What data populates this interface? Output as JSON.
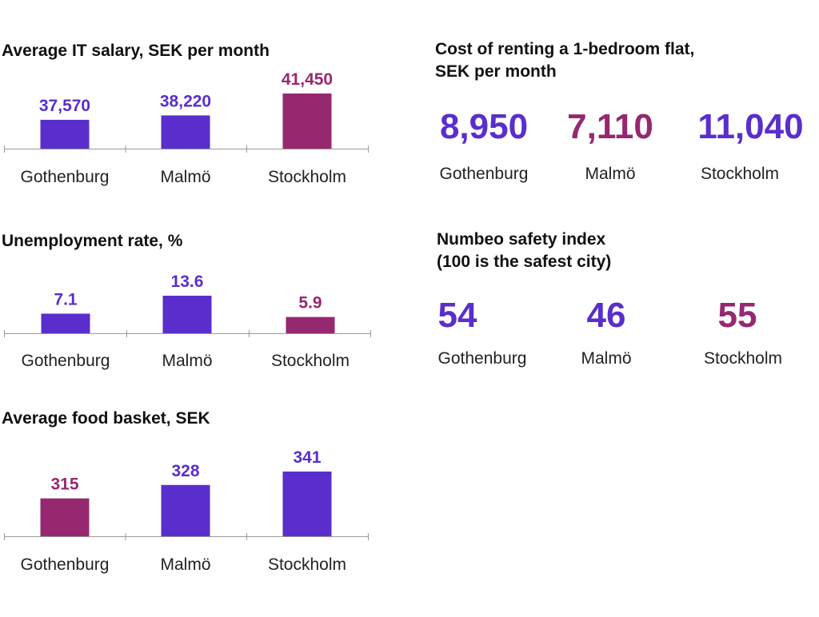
{
  "colors": {
    "purple": "#5a2ecc",
    "magenta": "#962870",
    "axis": "#9a9a9a",
    "text": "#222222"
  },
  "chart_data": [
    {
      "type": "bar",
      "title": "Average IT salary, SEK per month",
      "categories": [
        "Gothenburg",
        "Malmö",
        "Stockholm"
      ],
      "values": [
        37570,
        38220,
        41450
      ],
      "labels": [
        "37,570",
        "38,220",
        "41,450"
      ],
      "colors": [
        "purple",
        "purple",
        "magenta"
      ],
      "ylim": [
        36500,
        41450
      ]
    },
    {
      "type": "bar",
      "title": "Unemployment rate, %",
      "categories": [
        "Gothenburg",
        "Malmö",
        "Stockholm"
      ],
      "values": [
        7.1,
        13.6,
        5.9
      ],
      "labels": [
        "7.1",
        "13.6",
        "5.9"
      ],
      "colors": [
        "purple",
        "purple",
        "magenta"
      ],
      "ylim": [
        0,
        13.6
      ]
    },
    {
      "type": "bar",
      "title": "Average food basket, SEK",
      "categories": [
        "Gothenburg",
        "Malmö",
        "Stockholm"
      ],
      "values": [
        315,
        328,
        341
      ],
      "labels": [
        "315",
        "328",
        "341"
      ],
      "colors": [
        "magenta",
        "purple",
        "purple"
      ],
      "ylim": [
        300,
        341
      ]
    }
  ],
  "rent": {
    "title_line1": "Cost of renting a 1-bedroom flat,",
    "title_line2": "SEK per month",
    "items": [
      {
        "value": "8,950",
        "city": "Gothenburg",
        "color": "purple"
      },
      {
        "value": "7,110",
        "city": "Malmö",
        "color": "magenta"
      },
      {
        "value": "11,040",
        "city": "Stockholm",
        "color": "purple"
      }
    ]
  },
  "safety": {
    "title_line1": "Numbeo safety index",
    "title_line2": "(100 is the safest city)",
    "items": [
      {
        "value": "54",
        "city": "Gothenburg",
        "color": "purple"
      },
      {
        "value": "46",
        "city": "Malmö",
        "color": "purple"
      },
      {
        "value": "55",
        "city": "Stockholm",
        "color": "magenta"
      }
    ]
  }
}
